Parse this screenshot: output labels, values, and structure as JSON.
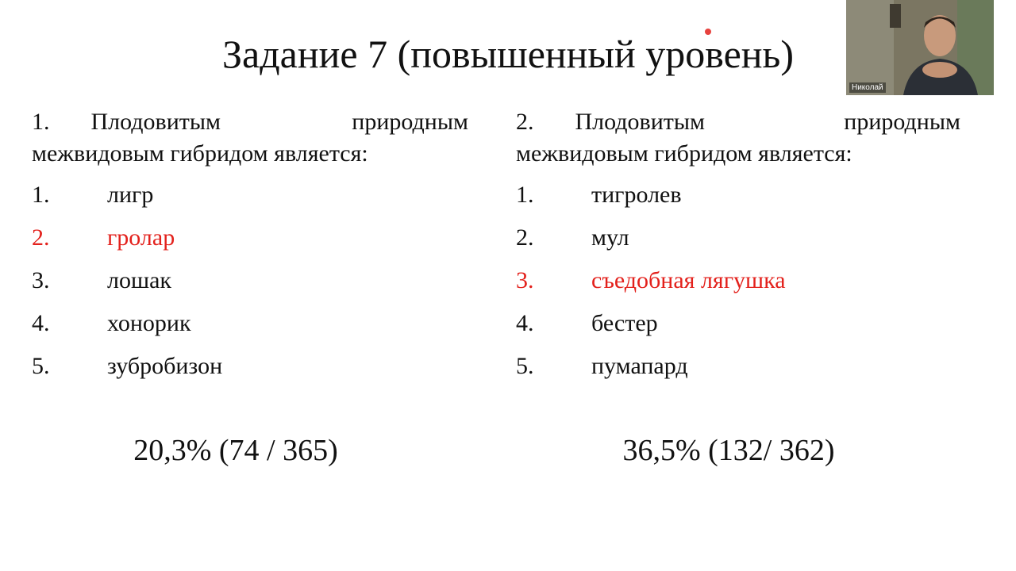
{
  "slide": {
    "title": "Задание 7 (повышенный уровень)",
    "questions": [
      {
        "number": "1.",
        "text": "Плодовитым природным межвидовым гибридом является:",
        "options": [
          {
            "number": "1.",
            "text": "лигр",
            "color": "#111111"
          },
          {
            "number": "2.",
            "text": "гролар",
            "color": "#e3211c"
          },
          {
            "number": "3.",
            "text": "лошак",
            "color": "#111111"
          },
          {
            "number": "4.",
            "text": "хонорик",
            "color": "#111111"
          },
          {
            "number": "5.",
            "text": "зубробизон",
            "color": "#111111"
          }
        ],
        "result": "20,3% (74 / 365)"
      },
      {
        "number": "2.",
        "text": "Плодовитым природным межвидовым гибридом является:",
        "options": [
          {
            "number": "1.",
            "text": "тигролев",
            "color": "#111111"
          },
          {
            "number": "2.",
            "text": "мул",
            "color": "#111111"
          },
          {
            "number": "3.",
            "text": "съедобная лягушка",
            "color": "#e3211c"
          },
          {
            "number": "4.",
            "text": "бестер",
            "color": "#111111"
          },
          {
            "number": "5.",
            "text": "пумапард",
            "color": "#111111"
          }
        ],
        "result": "36,5% (132/ 362)"
      }
    ]
  },
  "webcam": {
    "participant": "Николай"
  }
}
